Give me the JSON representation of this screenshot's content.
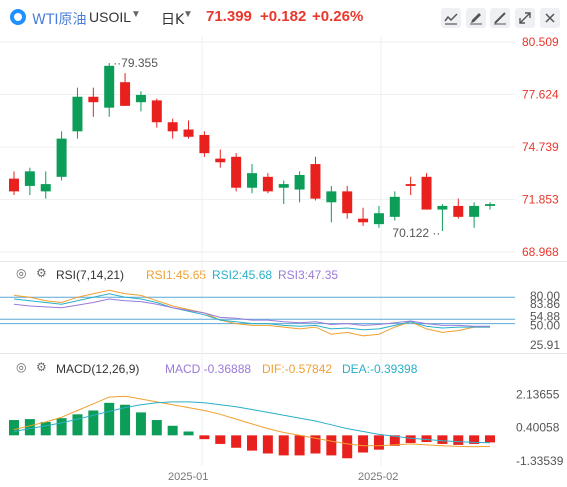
{
  "header": {
    "symbol_cn": "WTI原油",
    "symbol_code": "USOIL",
    "timeframe": "日K",
    "price": "71.399",
    "change": "+0.182",
    "change_pct": "+0.26%"
  },
  "colors": {
    "up": "#e8211e",
    "down": "#0c9d58",
    "accent": "#e8372c",
    "link": "#4a7fd8"
  },
  "toolbar": {
    "icons": [
      "line-chart-icon",
      "edit-icon",
      "drawing-icon",
      "expand-icon",
      "close-icon"
    ]
  },
  "price_panel": {
    "axis": [
      "80.509",
      "77.624",
      "74.739",
      "71.853",
      "68.968"
    ],
    "high_label": "79.355",
    "low_label": "70.122"
  },
  "rsi_panel": {
    "title": "RSI(7,14,21)",
    "rsi1": "RSI1:45.65",
    "rsi2": "RSI2:45.68",
    "rsi3": "RSI3:47.35",
    "axis": [
      "80.00",
      "83.86",
      "54.88",
      "50.00",
      "25.91"
    ]
  },
  "macd_panel": {
    "title": "MACD(12,26,9)",
    "macd": "MACD:-0.36888",
    "dif": "DIF:-0.57842",
    "dea": "DEA:-0.39398",
    "axis": [
      "2.13655",
      "0.40058",
      "-1.33539"
    ]
  },
  "x_axis": [
    "2025-01",
    "2025-02"
  ],
  "chart_data": {
    "type": "candlestick",
    "ylim": [
      68.968,
      80.509
    ],
    "candles": [
      {
        "o": 73.0,
        "h": 73.4,
        "l": 72.1,
        "c": 72.3
      },
      {
        "o": 72.6,
        "h": 73.6,
        "l": 72.1,
        "c": 73.4
      },
      {
        "o": 72.3,
        "h": 73.4,
        "l": 71.9,
        "c": 72.7
      },
      {
        "o": 73.1,
        "h": 75.6,
        "l": 72.9,
        "c": 75.2
      },
      {
        "o": 75.6,
        "h": 78.0,
        "l": 75.2,
        "c": 77.5
      },
      {
        "o": 77.5,
        "h": 78.0,
        "l": 76.4,
        "c": 77.2
      },
      {
        "o": 76.9,
        "h": 79.355,
        "l": 76.4,
        "c": 79.2
      },
      {
        "o": 78.3,
        "h": 78.8,
        "l": 77.0,
        "c": 77.0
      },
      {
        "o": 77.2,
        "h": 77.8,
        "l": 76.7,
        "c": 77.6
      },
      {
        "o": 77.3,
        "h": 77.4,
        "l": 75.8,
        "c": 76.1
      },
      {
        "o": 76.1,
        "h": 76.3,
        "l": 75.2,
        "c": 75.6
      },
      {
        "o": 75.7,
        "h": 76.2,
        "l": 75.2,
        "c": 75.3
      },
      {
        "o": 75.4,
        "h": 75.6,
        "l": 74.2,
        "c": 74.4
      },
      {
        "o": 74.1,
        "h": 74.6,
        "l": 73.6,
        "c": 73.9
      },
      {
        "o": 74.2,
        "h": 74.4,
        "l": 72.3,
        "c": 72.5
      },
      {
        "o": 72.5,
        "h": 73.8,
        "l": 72.2,
        "c": 73.3
      },
      {
        "o": 73.1,
        "h": 73.3,
        "l": 72.2,
        "c": 72.3
      },
      {
        "o": 72.5,
        "h": 72.9,
        "l": 71.6,
        "c": 72.7
      },
      {
        "o": 72.4,
        "h": 73.4,
        "l": 71.7,
        "c": 73.2
      },
      {
        "o": 73.8,
        "h": 74.2,
        "l": 71.8,
        "c": 71.9
      },
      {
        "o": 71.7,
        "h": 72.6,
        "l": 70.6,
        "c": 72.3
      },
      {
        "o": 72.3,
        "h": 72.6,
        "l": 70.8,
        "c": 71.1
      },
      {
        "o": 70.8,
        "h": 71.4,
        "l": 70.4,
        "c": 70.6
      },
      {
        "o": 70.5,
        "h": 71.5,
        "l": 70.3,
        "c": 71.1
      },
      {
        "o": 70.9,
        "h": 72.3,
        "l": 70.7,
        "c": 72.0
      },
      {
        "o": 72.7,
        "h": 73.1,
        "l": 72.1,
        "c": 72.6
      },
      {
        "o": 73.1,
        "h": 73.3,
        "l": 71.3,
        "c": 71.3
      },
      {
        "o": 71.3,
        "h": 71.6,
        "l": 70.122,
        "c": 71.5
      },
      {
        "o": 71.5,
        "h": 71.9,
        "l": 70.8,
        "c": 70.9
      },
      {
        "o": 70.9,
        "h": 71.7,
        "l": 70.3,
        "c": 71.5
      },
      {
        "o": 71.5,
        "h": 71.7,
        "l": 71.3,
        "c": 71.6
      }
    ],
    "rsi_ylim": [
      20,
      95
    ],
    "rsi1": [
      82,
      80,
      76,
      74,
      80,
      84,
      88,
      84,
      82,
      76,
      70,
      66,
      62,
      54,
      50,
      48,
      48,
      46,
      44,
      46,
      38,
      40,
      36,
      38,
      46,
      52,
      44,
      40,
      42,
      46,
      46
    ],
    "rsi2": [
      78,
      76,
      74,
      72,
      76,
      80,
      84,
      80,
      78,
      74,
      68,
      64,
      60,
      54,
      52,
      50,
      50,
      48,
      47,
      48,
      44,
      45,
      43,
      44,
      48,
      52,
      47,
      45,
      46,
      46,
      46
    ],
    "rsi3": [
      72,
      70,
      69,
      68,
      71,
      74,
      78,
      76,
      75,
      72,
      68,
      65,
      62,
      57,
      56,
      54,
      54,
      52,
      51,
      52,
      49,
      50,
      48,
      49,
      51,
      53,
      50,
      48,
      48,
      47,
      47
    ],
    "rsi_lines": [
      80.0,
      54.88,
      50.0
    ],
    "macd_ylim": [
      -1.5,
      3.0
    ],
    "macd_hist": [
      0.8,
      0.85,
      0.7,
      0.9,
      1.1,
      1.3,
      1.7,
      1.6,
      1.2,
      0.8,
      0.5,
      0.2,
      -0.2,
      -0.45,
      -0.65,
      -0.8,
      -0.95,
      -1.05,
      -1.05,
      -0.95,
      -1.05,
      -1.2,
      -0.9,
      -0.75,
      -0.55,
      -0.4,
      -0.35,
      -0.45,
      -0.5,
      -0.45,
      -0.37
    ],
    "dif": [
      0.3,
      0.5,
      0.7,
      0.95,
      1.3,
      1.65,
      2.0,
      2.05,
      1.9,
      1.75,
      1.6,
      1.45,
      1.3,
      1.1,
      0.85,
      0.6,
      0.35,
      0.15,
      0.0,
      -0.15,
      -0.3,
      -0.45,
      -0.55,
      -0.55,
      -0.5,
      -0.45,
      -0.5,
      -0.55,
      -0.58,
      -0.6,
      -0.58
    ],
    "dea": [
      0.2,
      0.35,
      0.5,
      0.65,
      0.85,
      1.05,
      1.25,
      1.45,
      1.6,
      1.7,
      1.75,
      1.75,
      1.7,
      1.6,
      1.5,
      1.35,
      1.2,
      1.05,
      0.9,
      0.75,
      0.55,
      0.35,
      0.2,
      0.05,
      -0.05,
      -0.15,
      -0.22,
      -0.28,
      -0.33,
      -0.37,
      -0.39
    ]
  }
}
